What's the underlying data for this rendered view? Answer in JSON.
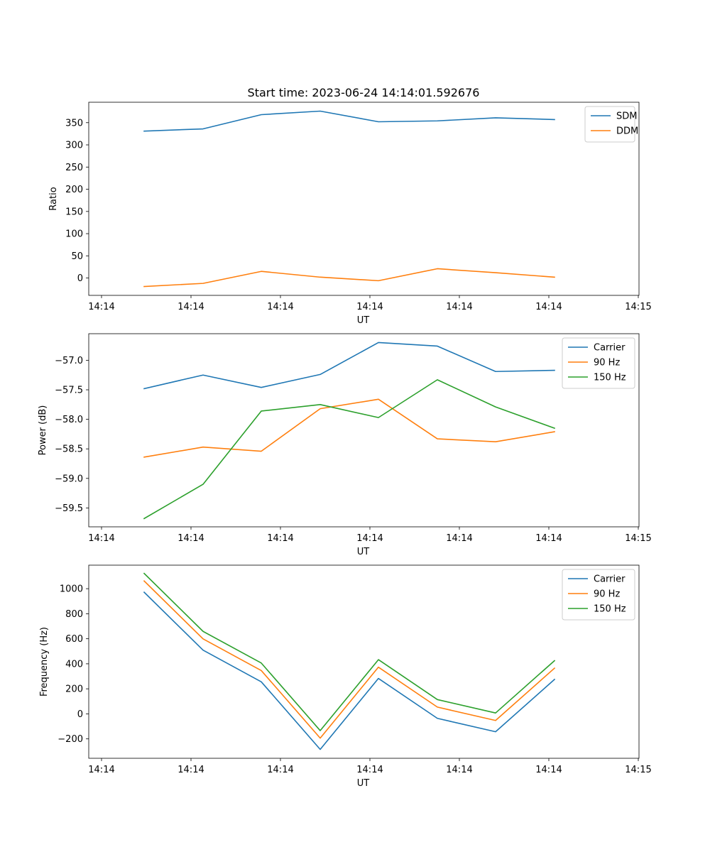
{
  "title": "Start time: 2023-06-24 14:14:01.592676",
  "chart_data": [
    {
      "type": "line",
      "title": "Start time: 2023-06-24 14:14:01.592676",
      "xlabel": "UT",
      "ylabel": "Ratio",
      "x_tick_labels": [
        "14:14",
        "14:14",
        "14:14",
        "14:14",
        "14:14",
        "14:14",
        "14:15"
      ],
      "y_ticks": [
        0,
        50,
        100,
        150,
        200,
        250,
        300,
        350
      ],
      "ylim": [
        -39,
        396
      ],
      "legend": "top-right",
      "grid": false,
      "series": [
        {
          "name": "SDM",
          "color": "#1f77b4",
          "values": [
            331,
            336,
            368,
            376,
            352,
            354,
            361,
            357
          ]
        },
        {
          "name": "DDM",
          "color": "#ff7f0e",
          "values": [
            -19,
            -12,
            15,
            2,
            -6,
            21,
            12,
            2
          ]
        }
      ]
    },
    {
      "type": "line",
      "title": "",
      "xlabel": "UT",
      "ylabel": "Power (dB)",
      "x_tick_labels": [
        "14:14",
        "14:14",
        "14:14",
        "14:14",
        "14:14",
        "14:14",
        "14:15"
      ],
      "y_ticks": [
        -59.5,
        -59.0,
        -58.5,
        -58.0,
        -57.5,
        -57.0
      ],
      "y_tick_labels": [
        "−59.5",
        "−59.0",
        "−58.5",
        "−58.0",
        "−57.5",
        "−57.0"
      ],
      "ylim": [
        -59.82,
        -56.55
      ],
      "legend": "top-right",
      "grid": false,
      "series": [
        {
          "name": "Carrier",
          "color": "#1f77b4",
          "values": [
            -57.48,
            -57.25,
            -57.46,
            -57.24,
            -56.7,
            -56.76,
            -57.19,
            -57.17
          ]
        },
        {
          "name": "90 Hz",
          "color": "#ff7f0e",
          "values": [
            -58.64,
            -58.47,
            -58.54,
            -57.82,
            -57.66,
            -58.33,
            -58.38,
            -58.21
          ]
        },
        {
          "name": "150 Hz",
          "color": "#2ca02c",
          "values": [
            -59.68,
            -59.1,
            -57.86,
            -57.75,
            -57.97,
            -57.33,
            -57.79,
            -58.15
          ]
        }
      ]
    },
    {
      "type": "line",
      "title": "",
      "xlabel": "UT",
      "ylabel": "Frequency (Hz)",
      "x_tick_labels": [
        "14:14",
        "14:14",
        "14:14",
        "14:14",
        "14:14",
        "14:14",
        "14:15"
      ],
      "y_ticks": [
        -200,
        0,
        200,
        400,
        600,
        800,
        1000
      ],
      "y_tick_labels": [
        "−200",
        "0",
        "200",
        "400",
        "600",
        "800",
        "1000"
      ],
      "ylim": [
        -355,
        1188
      ],
      "legend": "top-right",
      "grid": false,
      "series": [
        {
          "name": "Carrier",
          "color": "#1f77b4",
          "values": [
            972,
            509,
            256,
            -284,
            283,
            -36,
            -143,
            275
          ]
        },
        {
          "name": "90 Hz",
          "color": "#ff7f0e",
          "values": [
            1062,
            599,
            346,
            -194,
            373,
            54,
            -53,
            365
          ]
        },
        {
          "name": "150 Hz",
          "color": "#2ca02c",
          "values": [
            1122,
            659,
            406,
            -134,
            433,
            114,
            7,
            425
          ]
        }
      ]
    }
  ]
}
